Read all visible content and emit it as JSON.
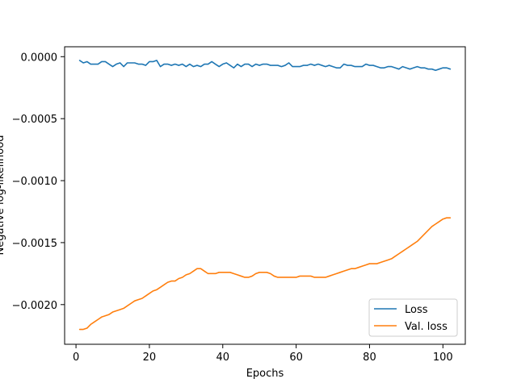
{
  "chart_data": {
    "type": "line",
    "title": "",
    "xlabel": "Epochs",
    "ylabel": "Negative log-likelihood",
    "xlim": [
      -3.1,
      106.1
    ],
    "ylim": [
      -0.00232,
      8e-05
    ],
    "x_ticks": [
      0,
      20,
      40,
      60,
      80,
      100
    ],
    "x_tick_labels": [
      "0",
      "20",
      "40",
      "60",
      "80",
      "100"
    ],
    "y_ticks": [
      0,
      -0.0005,
      -0.001,
      -0.0015,
      -0.002
    ],
    "y_tick_labels": [
      "0.0000",
      "−0.0005",
      "−0.0010",
      "−0.0015",
      "−0.0020"
    ],
    "grid": false,
    "legend_position": "lower-right",
    "series": [
      {
        "name": "Loss",
        "color": "#1f77b4",
        "x": [
          1,
          2,
          3,
          4,
          5,
          6,
          7,
          8,
          9,
          10,
          11,
          12,
          13,
          14,
          15,
          16,
          17,
          18,
          19,
          20,
          21,
          22,
          23,
          24,
          25,
          26,
          27,
          28,
          29,
          30,
          31,
          32,
          33,
          34,
          35,
          36,
          37,
          38,
          39,
          40,
          41,
          42,
          43,
          44,
          45,
          46,
          47,
          48,
          49,
          50,
          51,
          52,
          53,
          54,
          55,
          56,
          57,
          58,
          59,
          60,
          61,
          62,
          63,
          64,
          65,
          66,
          67,
          68,
          69,
          70,
          71,
          72,
          73,
          74,
          75,
          76,
          77,
          78,
          79,
          80,
          81,
          82,
          83,
          84,
          85,
          86,
          87,
          88,
          89,
          90,
          91,
          92,
          93,
          94,
          95,
          96,
          97,
          98,
          99,
          100,
          101,
          102
        ],
        "values": [
          -3e-05,
          -5e-05,
          -4e-05,
          -6e-05,
          -6e-05,
          -6e-05,
          -4e-05,
          -4e-05,
          -6e-05,
          -8e-05,
          -6e-05,
          -5e-05,
          -8e-05,
          -5e-05,
          -5e-05,
          -5e-05,
          -6e-05,
          -6e-05,
          -7e-05,
          -4e-05,
          -4e-05,
          -3e-05,
          -8e-05,
          -6e-05,
          -6e-05,
          -7e-05,
          -6e-05,
          -7e-05,
          -6e-05,
          -8e-05,
          -6e-05,
          -8e-05,
          -7e-05,
          -8e-05,
          -6e-05,
          -6e-05,
          -4e-05,
          -6e-05,
          -8e-05,
          -6e-05,
          -5e-05,
          -7e-05,
          -9e-05,
          -6e-05,
          -8e-05,
          -6e-05,
          -6e-05,
          -8e-05,
          -6e-05,
          -7e-05,
          -6e-05,
          -6e-05,
          -7e-05,
          -7e-05,
          -7e-05,
          -8e-05,
          -7e-05,
          -5e-05,
          -8e-05,
          -8e-05,
          -8e-05,
          -7e-05,
          -7e-05,
          -6e-05,
          -7e-05,
          -6e-05,
          -7e-05,
          -8e-05,
          -7e-05,
          -8e-05,
          -9e-05,
          -9e-05,
          -6e-05,
          -7e-05,
          -7e-05,
          -8e-05,
          -8e-05,
          -8e-05,
          -6e-05,
          -7e-05,
          -7e-05,
          -8e-05,
          -9e-05,
          -9e-05,
          -8e-05,
          -8e-05,
          -9e-05,
          -0.0001,
          -8e-05,
          -9e-05,
          -0.0001,
          -9e-05,
          -8e-05,
          -9e-05,
          -9e-05,
          -0.0001,
          -0.0001,
          -0.00011,
          -0.0001,
          -9e-05,
          -9e-05,
          -0.0001
        ]
      },
      {
        "name": "Val. loss",
        "color": "#ff7f0e",
        "x": [
          1,
          2,
          3,
          4,
          5,
          6,
          7,
          8,
          9,
          10,
          11,
          12,
          13,
          14,
          15,
          16,
          17,
          18,
          19,
          20,
          21,
          22,
          23,
          24,
          25,
          26,
          27,
          28,
          29,
          30,
          31,
          32,
          33,
          34,
          35,
          36,
          37,
          38,
          39,
          40,
          41,
          42,
          43,
          44,
          45,
          46,
          47,
          48,
          49,
          50,
          51,
          52,
          53,
          54,
          55,
          56,
          57,
          58,
          59,
          60,
          61,
          62,
          63,
          64,
          65,
          66,
          67,
          68,
          69,
          70,
          71,
          72,
          73,
          74,
          75,
          76,
          77,
          78,
          79,
          80,
          81,
          82,
          83,
          84,
          85,
          86,
          87,
          88,
          89,
          90,
          91,
          92,
          93,
          94,
          95,
          96,
          97,
          98,
          99,
          100,
          101,
          102
        ],
        "values": [
          -0.0022,
          -0.0022,
          -0.00219,
          -0.00216,
          -0.00214,
          -0.00212,
          -0.0021,
          -0.00209,
          -0.00208,
          -0.00206,
          -0.00205,
          -0.00204,
          -0.00203,
          -0.00201,
          -0.00199,
          -0.00197,
          -0.00196,
          -0.00195,
          -0.00193,
          -0.00191,
          -0.00189,
          -0.00188,
          -0.00186,
          -0.00184,
          -0.00182,
          -0.00181,
          -0.00181,
          -0.00179,
          -0.00178,
          -0.00176,
          -0.00175,
          -0.00173,
          -0.00171,
          -0.00171,
          -0.00173,
          -0.00175,
          -0.00175,
          -0.00175,
          -0.00174,
          -0.00174,
          -0.00174,
          -0.00174,
          -0.00175,
          -0.00176,
          -0.00177,
          -0.00178,
          -0.00178,
          -0.00177,
          -0.00175,
          -0.00174,
          -0.00174,
          -0.00174,
          -0.00175,
          -0.00177,
          -0.00178,
          -0.00178,
          -0.00178,
          -0.00178,
          -0.00178,
          -0.00178,
          -0.00177,
          -0.00177,
          -0.00177,
          -0.00177,
          -0.00178,
          -0.00178,
          -0.00178,
          -0.00178,
          -0.00177,
          -0.00176,
          -0.00175,
          -0.00174,
          -0.00173,
          -0.00172,
          -0.00171,
          -0.00171,
          -0.0017,
          -0.00169,
          -0.00168,
          -0.00167,
          -0.00167,
          -0.00167,
          -0.00166,
          -0.00165,
          -0.00164,
          -0.00163,
          -0.00161,
          -0.00159,
          -0.00157,
          -0.00155,
          -0.00153,
          -0.00151,
          -0.00149,
          -0.00146,
          -0.00143,
          -0.0014,
          -0.00137,
          -0.00135,
          -0.00133,
          -0.00131,
          -0.0013,
          -0.0013
        ]
      }
    ]
  }
}
